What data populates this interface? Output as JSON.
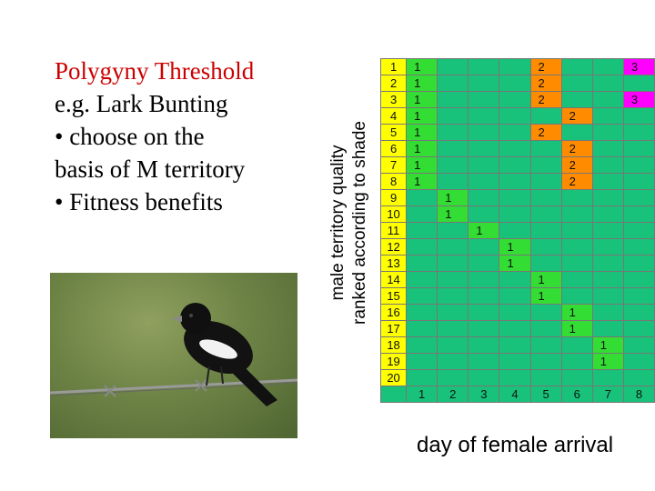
{
  "title": {
    "line1": "Polygyny Threshold",
    "line2": "e.g. Lark Bunting",
    "line3": "• choose on the",
    "line4": "basis of M territory",
    "line5": "• Fitness benefits"
  },
  "y_label": {
    "line1": "male territory quality",
    "line2": "ranked according to shade"
  },
  "x_label": "day of female arrival",
  "colors": {
    "grid_bg": "#18c27a",
    "rank_col": "#ffff00",
    "one_female": "#33dd33",
    "two_female": "#ff8c00",
    "three_female": "#ff00ff",
    "title_red": "#cc0000"
  },
  "grid": {
    "row_labels": [
      "1",
      "2",
      "3",
      "4",
      "5",
      "6",
      "7",
      "8",
      "9",
      "10",
      "11",
      "12",
      "13",
      "14",
      "15",
      "16",
      "17",
      "18",
      "19",
      "20"
    ],
    "day_labels": [
      "1",
      "2",
      "3",
      "4",
      "5",
      "6",
      "7",
      "8"
    ],
    "cells": [
      [
        "1",
        "",
        "",
        "",
        "2",
        "",
        "",
        "3"
      ],
      [
        "1",
        "",
        "",
        "",
        "2",
        "",
        "",
        ""
      ],
      [
        "1",
        "",
        "",
        "",
        "2",
        "",
        "",
        "3"
      ],
      [
        "1",
        "",
        "",
        "",
        "",
        "2",
        "",
        ""
      ],
      [
        "1",
        "",
        "",
        "",
        "2",
        "",
        "",
        ""
      ],
      [
        "1",
        "",
        "",
        "",
        "",
        "2",
        "",
        ""
      ],
      [
        "1",
        "",
        "",
        "",
        "",
        "2",
        "",
        ""
      ],
      [
        "1",
        "",
        "",
        "",
        "",
        "2",
        "",
        ""
      ],
      [
        "",
        "1",
        "",
        "",
        "",
        "",
        "",
        ""
      ],
      [
        "",
        "1",
        "",
        "",
        "",
        "",
        "",
        ""
      ],
      [
        "",
        "",
        "1",
        "",
        "",
        "",
        "",
        ""
      ],
      [
        "",
        "",
        "",
        "1",
        "",
        "",
        "",
        ""
      ],
      [
        "",
        "",
        "",
        "1",
        "",
        "",
        "",
        ""
      ],
      [
        "",
        "",
        "",
        "",
        "1",
        "",
        "",
        ""
      ],
      [
        "",
        "",
        "",
        "",
        "1",
        "",
        "",
        ""
      ],
      [
        "",
        "",
        "",
        "",
        "",
        "1",
        "",
        ""
      ],
      [
        "",
        "",
        "",
        "",
        "",
        "1",
        "",
        ""
      ],
      [
        "",
        "",
        "",
        "",
        "",
        "",
        "1",
        ""
      ],
      [
        "",
        "",
        "",
        "",
        "",
        "",
        "1",
        ""
      ],
      [
        "",
        "",
        "",
        "",
        "",
        "",
        "",
        ""
      ]
    ]
  }
}
